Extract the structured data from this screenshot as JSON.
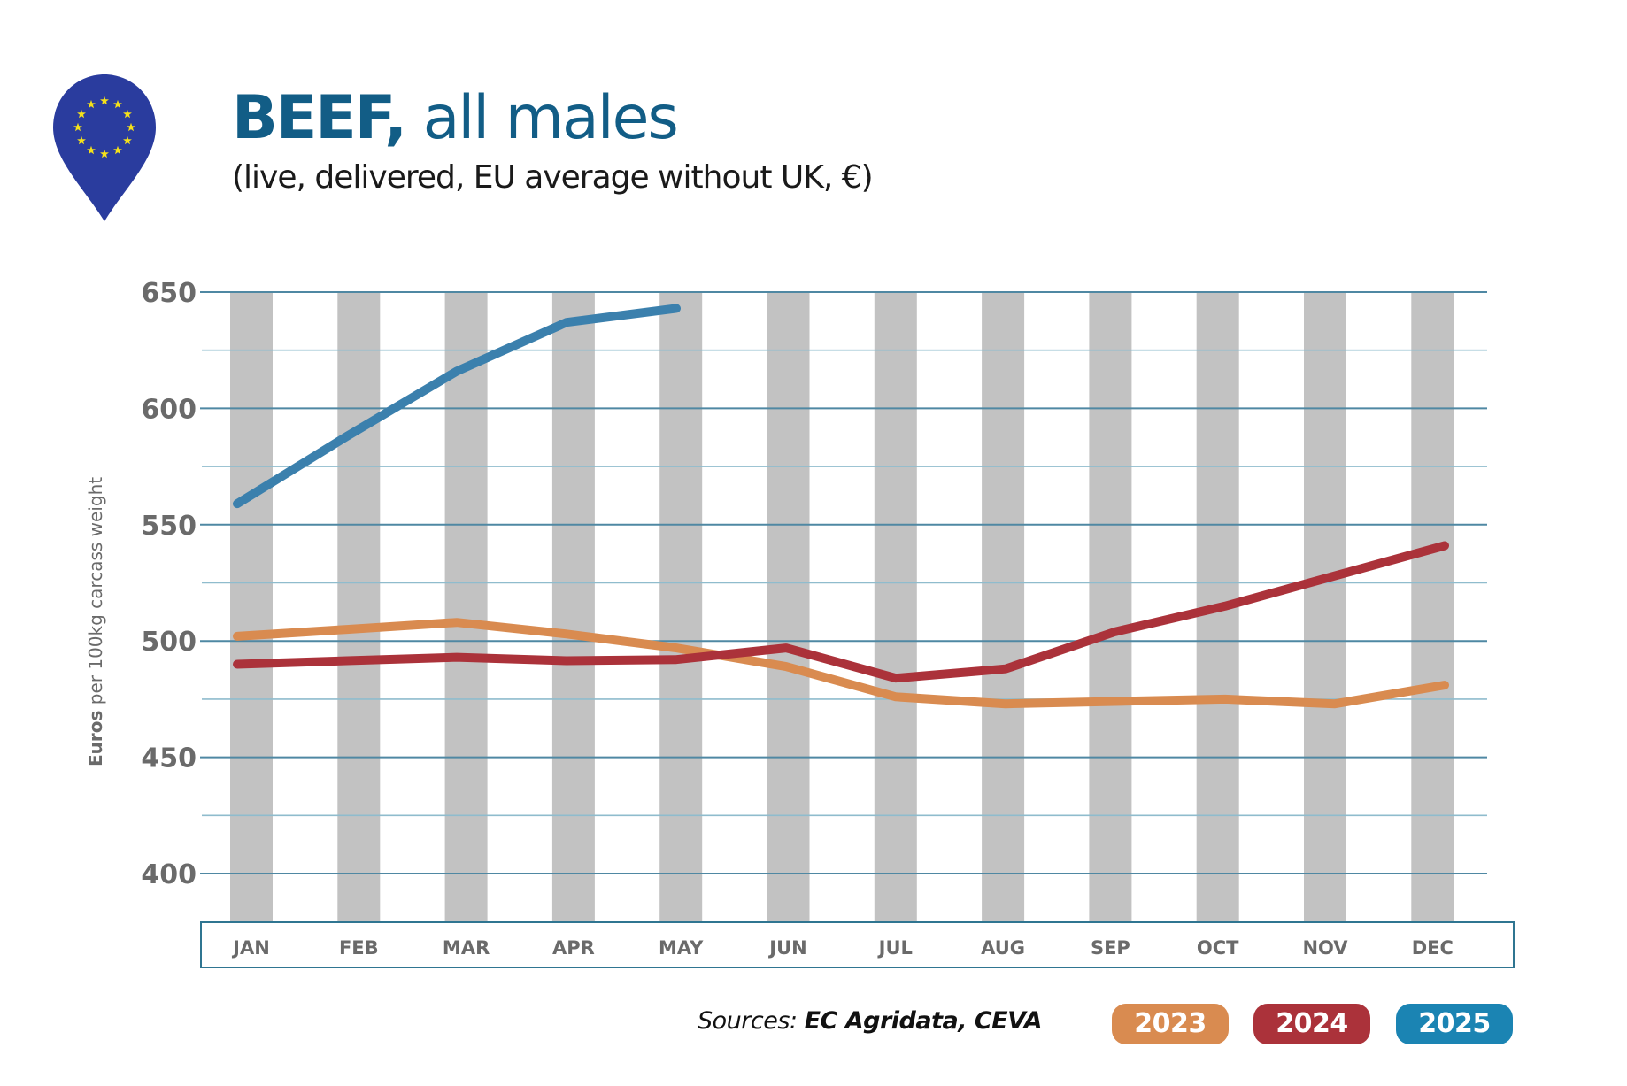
{
  "header": {
    "title_bold": "BEEF,",
    "title_rest": " all males",
    "subtitle": "(live, delivered, EU average without UK, €)",
    "logo_icon": "eu-flag-map-pin-icon"
  },
  "colors": {
    "title": "#125d86",
    "series_2023": "#d98b50",
    "series_2024": "#ab323a",
    "series_2025": "#3b80ad",
    "legend_2025": "#1b84b3",
    "bands": "#c2c2c2",
    "grid": "#5a93ad",
    "eu_blue": "#2a3c9e",
    "eu_star": "#f5e11a"
  },
  "chart_data": {
    "type": "line",
    "title": "BEEF, all males",
    "subtitle": "(live, delivered, EU average without UK, €)",
    "xlabel": "",
    "ylabel_bold": "Euros",
    "ylabel_rest": " per 100kg carcass weight",
    "ylabel": "Euros per 100kg carcass weight",
    "categories": [
      "JAN",
      "FEB",
      "MAR",
      "APR",
      "MAY",
      "JUN",
      "JUL",
      "AUG",
      "SEP",
      "OCT",
      "NOV",
      "DEC"
    ],
    "ylim": [
      400,
      650
    ],
    "yticks": [
      400,
      450,
      500,
      550,
      600,
      650
    ],
    "minor_grid_step": 25,
    "grid": true,
    "legend_position": "bottom-right",
    "series": [
      {
        "name": "2023",
        "color": "#d98b50",
        "values": [
          502,
          505,
          508,
          503,
          497,
          489,
          476,
          473,
          474,
          475,
          473,
          481
        ]
      },
      {
        "name": "2024",
        "color": "#ab323a",
        "values": [
          490,
          491.5,
          493,
          491.5,
          492,
          497,
          484,
          488,
          504,
          515,
          528,
          541
        ]
      },
      {
        "name": "2025",
        "color": "#3b80ad",
        "values": [
          559,
          588,
          616,
          637,
          643
        ]
      }
    ]
  },
  "footer": {
    "sources_label": "Sources: ",
    "sources_value": "EC Agridata, CEVA"
  },
  "legend": [
    {
      "label": "2023",
      "color": "#d98b50"
    },
    {
      "label": "2024",
      "color": "#ab323a"
    },
    {
      "label": "2025",
      "color": "#1b84b3"
    }
  ]
}
